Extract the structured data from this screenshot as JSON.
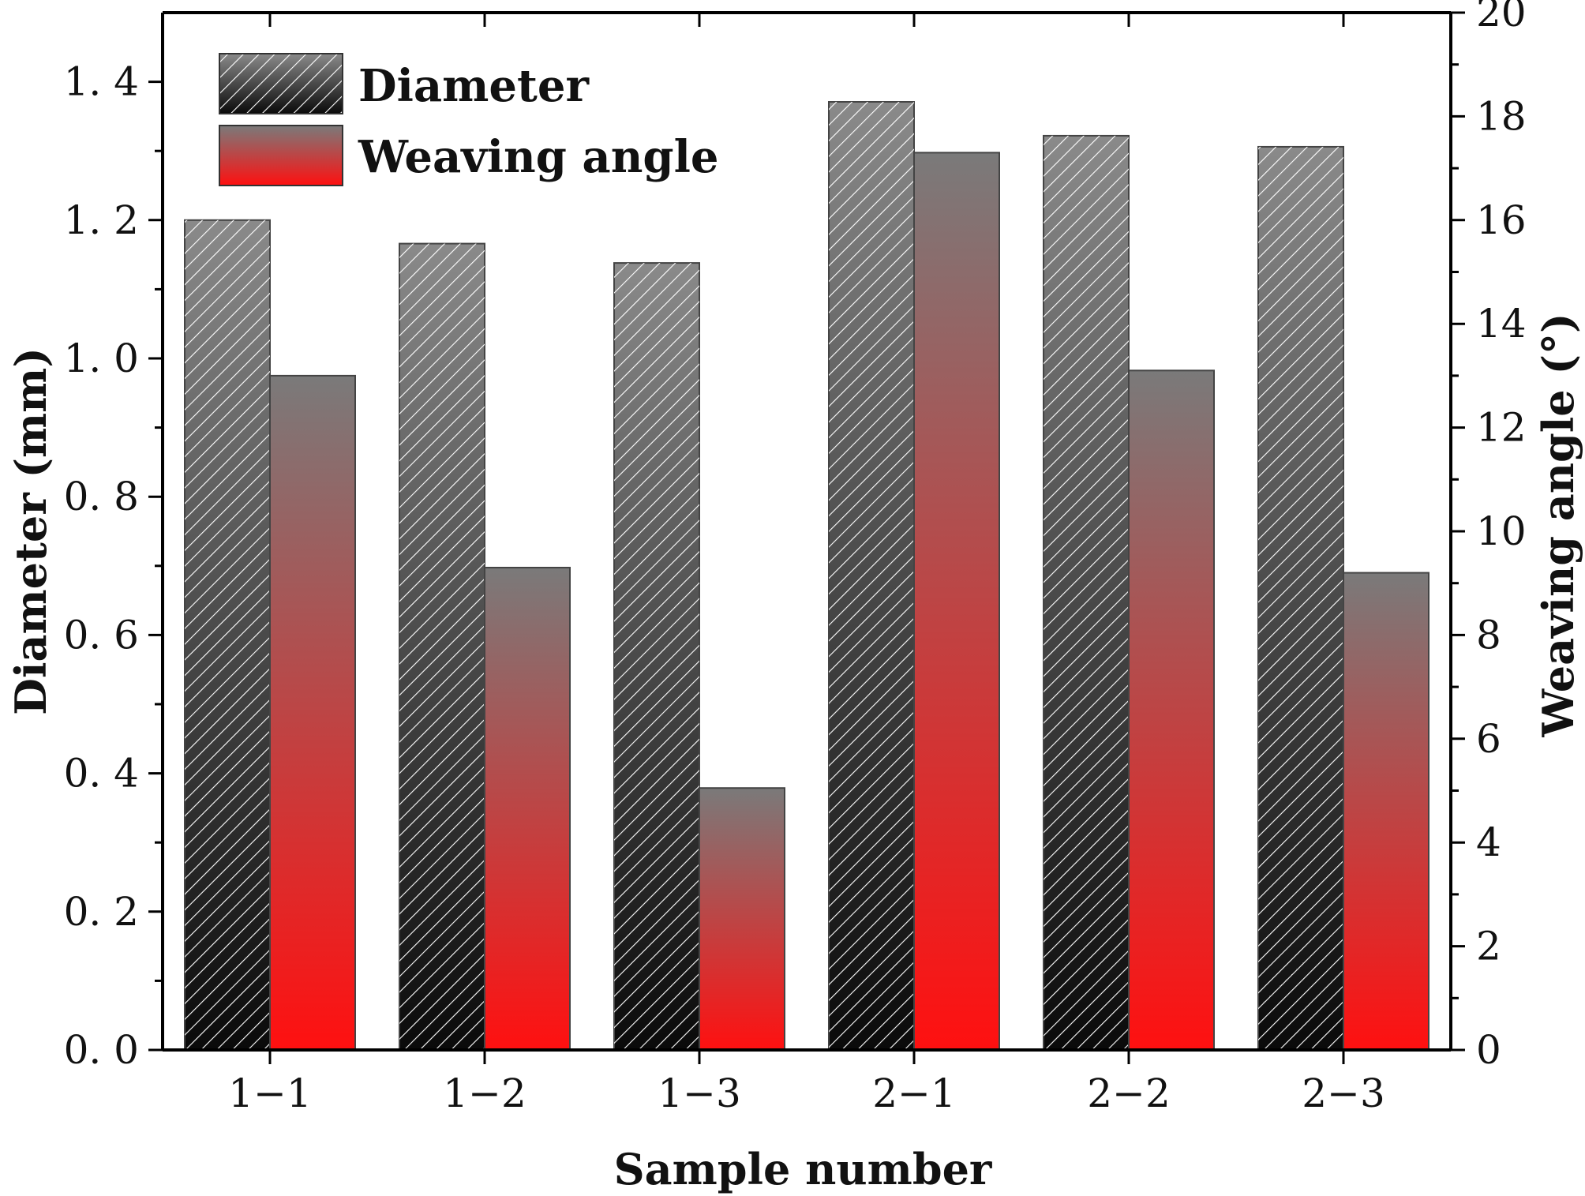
{
  "chart_data": {
    "type": "bar",
    "title": "",
    "categories": [
      "1−1",
      "1−2",
      "1−3",
      "2−1",
      "2−2",
      "2−3"
    ],
    "series": [
      {
        "name": "Diameter",
        "axis": "left",
        "values": [
          1.2,
          1.166,
          1.138,
          1.371,
          1.322,
          1.306
        ]
      },
      {
        "name": "Weaving angle",
        "axis": "right",
        "values": [
          13.0,
          9.3,
          5.05,
          17.3,
          13.1,
          9.2
        ]
      }
    ],
    "xlabel": "Sample number",
    "ylabel": "Diameter (mm)",
    "y2label": "Weaving angle (°)",
    "ylim": [
      0,
      1.5
    ],
    "y2lim": [
      0,
      20
    ],
    "yticks": [
      0.0,
      0.2,
      0.4,
      0.6,
      0.8,
      1.0,
      1.2,
      1.4
    ],
    "ytick_labels": [
      "0. 0",
      "0. 2",
      "0. 4",
      "0. 6",
      "0. 8",
      "1. 0",
      "1. 2",
      "1. 4"
    ],
    "y2ticks": [
      0,
      2,
      4,
      6,
      8,
      10,
      12,
      14,
      16,
      18,
      20
    ],
    "y2tick_labels": [
      "0",
      "2",
      "4",
      "6",
      "8",
      "10",
      "12",
      "14",
      "16",
      "18",
      "20"
    ],
    "legend_position": "top-left",
    "grid": false,
    "colors": {
      "diameter_top": "#8a8a8a",
      "diameter_bottom": "#0a0a0a",
      "hatch": "#ffffff",
      "angle_top": "#7a7a7a",
      "angle_bottom": "#ff1010",
      "axis": "#000000"
    }
  }
}
